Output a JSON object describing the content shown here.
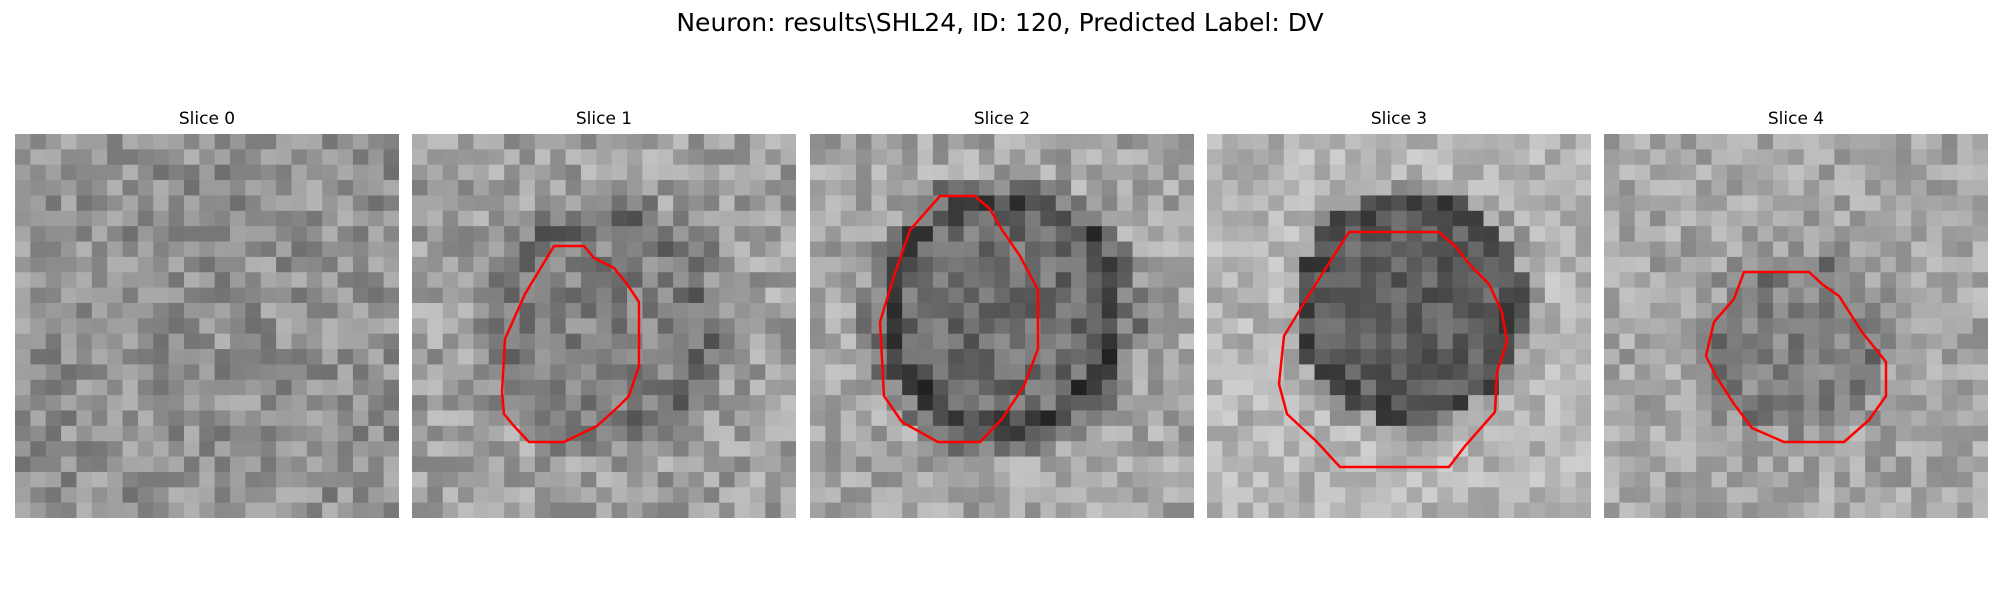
{
  "figure": {
    "title": "Neuron: results\\SHL24, ID: 120, Predicted Label: DV"
  },
  "colors": {
    "contour": "#ff0000",
    "background": "#ffffff"
  },
  "panels": [
    {
      "title": "Slice 0",
      "has_contour": false
    },
    {
      "title": "Slice 1",
      "has_contour": true
    },
    {
      "title": "Slice 2",
      "has_contour": true
    },
    {
      "title": "Slice 3",
      "has_contour": true
    },
    {
      "title": "Slice 4",
      "has_contour": true
    }
  ]
}
